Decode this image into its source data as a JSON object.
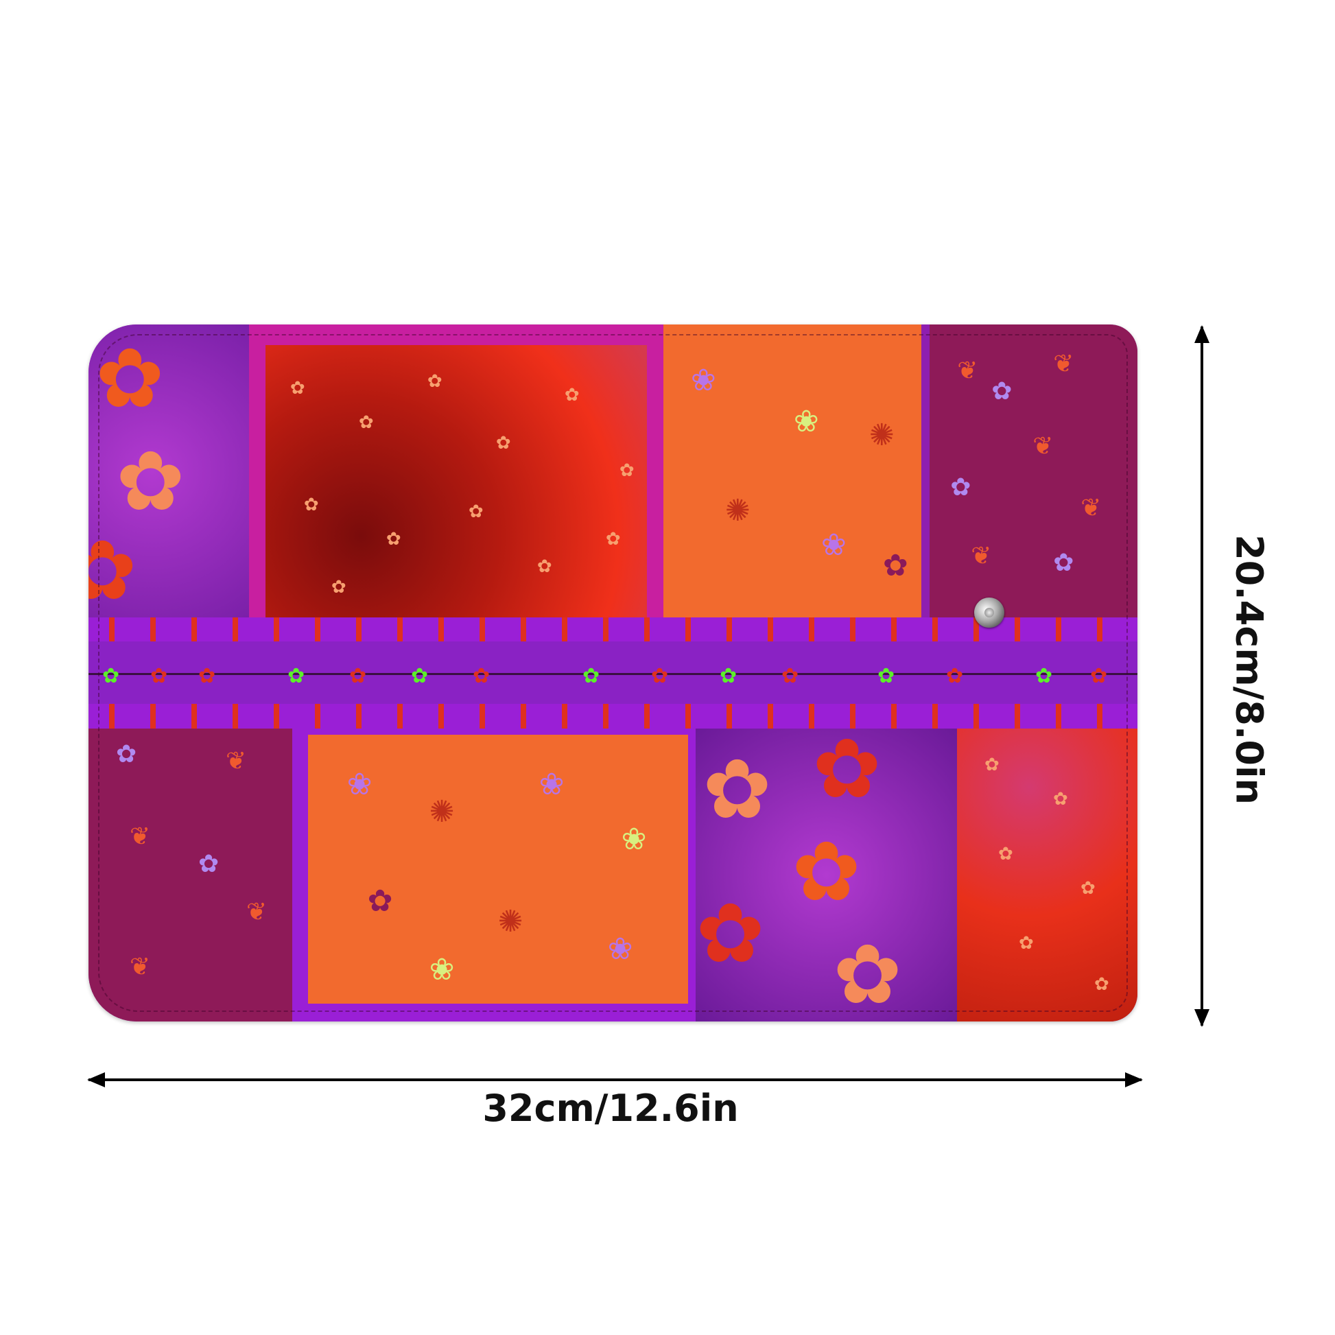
{
  "product": {
    "width_label": "32cm/12.6in",
    "height_label": "20.4cm/8.0in",
    "colors": {
      "orange": "#f26a2e",
      "red": "#e0301e",
      "dark_red": "#8c1010",
      "magenta": "#8e1a58",
      "purple": "#8a22c4",
      "green_accent": "#5cf02a"
    },
    "icons": [
      "snap-button-icon",
      "double-arrow-horizontal-icon",
      "double-arrow-vertical-icon"
    ]
  }
}
